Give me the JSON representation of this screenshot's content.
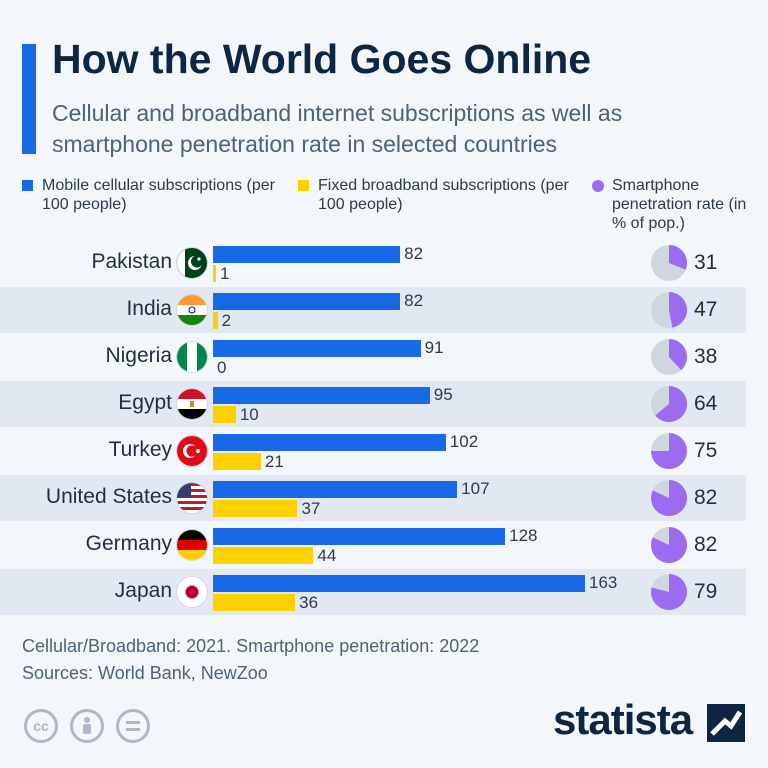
{
  "title": "How the World Goes Online",
  "subtitle": "Cellular and broadband internet subscriptions as well as smartphone penetration rate in selected countries",
  "legend": [
    {
      "label": "Mobile cellular subscriptions (per 100 people)",
      "color": "#1869e6"
    },
    {
      "label": "Fixed broadband subscriptions (per 100 people)",
      "color": "#fdd000"
    },
    {
      "label": "Smartphone penetration rate (in % of pop.)",
      "color": "#9b6cf0"
    }
  ],
  "footer": {
    "note": "Cellular/Broadband: 2021. Smartphone penetration: 2022",
    "sources": "Sources: World Bank, NewZoo"
  },
  "brand": "statista",
  "icons": [
    "cc-icon",
    "attribution-icon",
    "no-derivatives-icon",
    "statista-logo-icon"
  ],
  "colors": {
    "mobile": "#1869e6",
    "broadband": "#fdd000",
    "smartphone": "#9b6cf0",
    "pie_rest": "#cfd6df",
    "alt_row": "#e2e8f2"
  },
  "chart_data": {
    "type": "bar",
    "categories": [
      "Pakistan",
      "India",
      "Nigeria",
      "Egypt",
      "Turkey",
      "United States",
      "Germany",
      "Japan"
    ],
    "series": [
      {
        "name": "Mobile cellular subscriptions (per 100 people)",
        "values": [
          82,
          82,
          91,
          95,
          102,
          107,
          128,
          163
        ]
      },
      {
        "name": "Fixed broadband subscriptions (per 100 people)",
        "values": [
          1,
          2,
          0,
          10,
          21,
          37,
          44,
          36
        ]
      },
      {
        "name": "Smartphone penetration rate (in % of pop.)",
        "values": [
          31,
          47,
          38,
          64,
          75,
          82,
          82,
          79
        ]
      }
    ],
    "orientation": "horizontal",
    "flags": [
      "pakistan-flag-icon",
      "india-flag-icon",
      "nigeria-flag-icon",
      "egypt-flag-icon",
      "turkey-flag-icon",
      "usa-flag-icon",
      "germany-flag-icon",
      "japan-flag-icon"
    ]
  }
}
